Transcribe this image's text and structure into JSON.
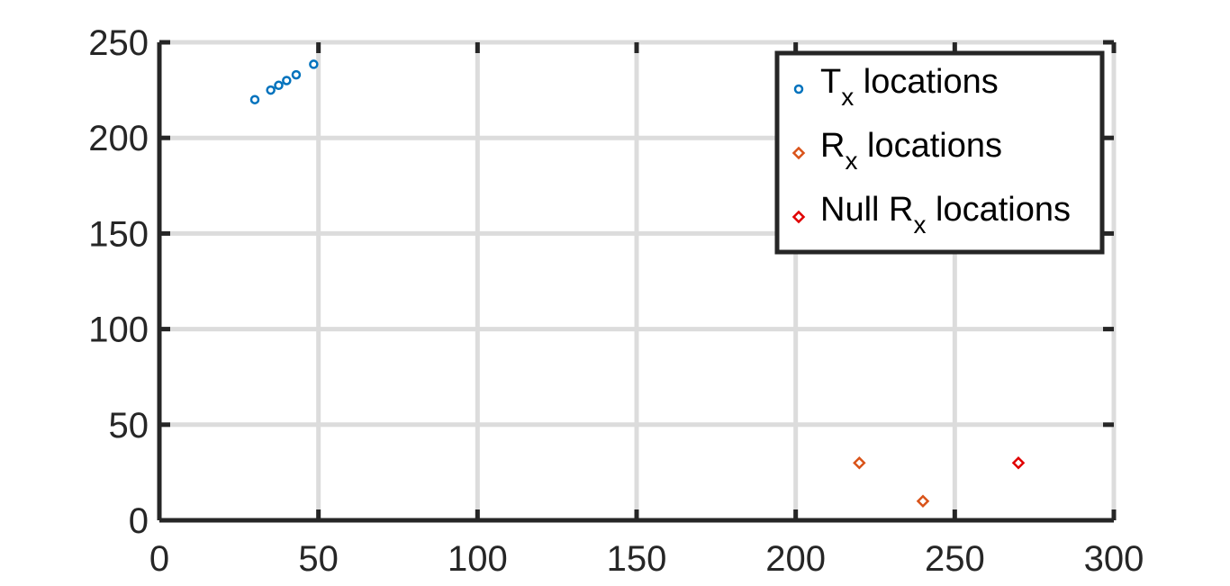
{
  "chart_data": {
    "type": "scatter",
    "title": "",
    "xlabel": "",
    "ylabel": "",
    "xlim": [
      0,
      300
    ],
    "ylim": [
      0,
      250
    ],
    "xticks": [
      0,
      50,
      100,
      150,
      200,
      250,
      300
    ],
    "yticks": [
      0,
      50,
      100,
      150,
      200,
      250
    ],
    "xtick_labels": [
      "0",
      "50",
      "100",
      "150",
      "200",
      "250",
      "300"
    ],
    "ytick_labels": [
      "0",
      "50",
      "100",
      "150",
      "200",
      "250"
    ],
    "grid": true,
    "legend_position": "top-right",
    "series": [
      {
        "name": "T_x locations",
        "legend": {
          "main": "T",
          "sub": "x",
          "rest": " locations"
        },
        "marker": "circle",
        "color": "#0072BD",
        "points": [
          [
            30,
            220
          ],
          [
            35,
            225
          ],
          [
            37.5,
            227.5
          ],
          [
            40,
            230
          ],
          [
            43,
            233
          ],
          [
            48.5,
            238.5
          ]
        ]
      },
      {
        "name": "R_x locations",
        "legend": {
          "main": "R",
          "sub": "x",
          "rest": " locations"
        },
        "marker": "diamond",
        "color": "#D95319",
        "points": [
          [
            220,
            30
          ],
          [
            240,
            10
          ]
        ]
      },
      {
        "name": "Null R_x locations",
        "legend": {
          "main": "Null R",
          "sub": "x",
          "rest": " locations"
        },
        "marker": "diamond",
        "color": "#E00000",
        "points": [
          [
            270,
            30
          ]
        ]
      }
    ]
  }
}
